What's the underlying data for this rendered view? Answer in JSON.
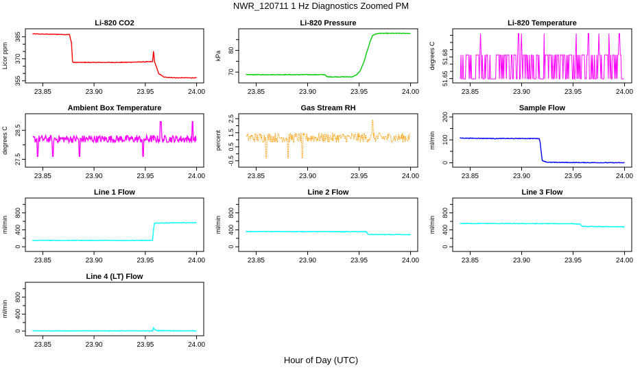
{
  "title": "NWR_120711  1 Hz Diagnostics Zoomed PM",
  "xlabel": "Hour of Day (UTC)",
  "colors": {
    "red": "#ff0000",
    "green": "#00cc00",
    "magenta": "#ff00ff",
    "orange": "#ff9900",
    "blue": "#0000ff",
    "cyan": "#00ffff",
    "axis": "#000000"
  },
  "chart_data": [
    {
      "type": "line",
      "title": "Li-820 CO2",
      "xlabel": "Hour of Day (UTC)",
      "ylabel": "Licor ppm",
      "xlim": [
        23.84,
        24.0
      ],
      "ylim": [
        355,
        389
      ],
      "xticks": [
        23.85,
        23.9,
        23.95,
        24.0
      ],
      "xtick_labels": [
        "23.85",
        "23.90",
        "23.95",
        "24.00"
      ],
      "yticks": [
        355,
        370,
        385
      ],
      "ytick_labels": [
        "355",
        "370",
        "385"
      ],
      "minor_yticks": [
        360,
        365,
        375,
        380
      ],
      "color": "red",
      "style": "line",
      "series": [
        {
          "name": "CO2",
          "x": [
            23.84,
            23.876,
            23.878,
            23.879,
            23.88,
            23.9,
            23.925,
            23.957,
            23.958,
            23.959,
            23.963,
            23.968,
            23.98,
            24.0
          ],
          "y": [
            387,
            386.5,
            381,
            368,
            367.5,
            367.5,
            367.5,
            368,
            375,
            368,
            360,
            357.5,
            357,
            357
          ]
        }
      ]
    },
    {
      "type": "line",
      "title": "Li-820 Pressure",
      "xlabel": "Hour of Day (UTC)",
      "ylabel": "kPa",
      "xlim": [
        23.84,
        24.0
      ],
      "ylim": [
        66,
        89
      ],
      "xticks": [
        23.85,
        23.9,
        23.95,
        24.0
      ],
      "xtick_labels": [
        "23.85",
        "23.90",
        "23.95",
        "24.00"
      ],
      "yticks": [
        70,
        80
      ],
      "ytick_labels": [
        "70",
        "80"
      ],
      "minor_yticks": [
        75,
        85
      ],
      "color": "green",
      "style": "line",
      "series": [
        {
          "name": "Pressure",
          "x": [
            23.84,
            23.917,
            23.919,
            23.943,
            23.947,
            23.951,
            23.955,
            23.958,
            23.961,
            23.963,
            23.966,
            23.97,
            24.0
          ],
          "y": [
            68.8,
            68.8,
            67.8,
            67.8,
            68.5,
            70.5,
            75,
            80,
            84.5,
            86.8,
            87.6,
            87.9,
            87.9
          ]
        }
      ]
    },
    {
      "type": "line",
      "title": "Li-820 Temperature",
      "xlabel": "Hour of Day (UTC)",
      "ylabel": "degrees C",
      "xlim": [
        23.84,
        24.0
      ],
      "ylim": [
        51.647,
        51.716
      ],
      "xticks": [
        23.85,
        23.9,
        23.95,
        24.0
      ],
      "xtick_labels": [
        "23.85",
        "23.90",
        "23.95",
        "24.00"
      ],
      "yticks": [
        51.65,
        51.68
      ],
      "ytick_labels": [
        "51.65",
        "51.68"
      ],
      "minor_yticks": [
        51.66,
        51.67,
        51.69,
        51.7,
        51.71
      ],
      "color": "magenta",
      "style": "quantized",
      "levels": [
        51.6496,
        51.6828,
        51.7124
      ],
      "series": [
        {
          "name": "Temperature",
          "base_level": 51.6828,
          "low_level": 51.6496,
          "spikes_x": [
            23.86,
            23.897,
            23.9,
            23.922,
            23.953,
            23.965,
            23.985,
            23.995,
            23.975
          ]
        }
      ]
    },
    {
      "type": "line",
      "title": "Ambient Box Temperature",
      "xlabel": "Hour of Day (UTC)",
      "ylabel": "degrees C",
      "xlim": [
        23.84,
        24.0
      ],
      "ylim": [
        27.3,
        29.0
      ],
      "xticks": [
        23.85,
        23.9,
        23.95,
        24.0
      ],
      "xtick_labels": [
        "23.85",
        "23.90",
        "23.95",
        "24.00"
      ],
      "yticks": [
        27.5,
        28.5
      ],
      "ytick_labels": [
        "27.5",
        "28.5"
      ],
      "minor_yticks": [
        28.0
      ],
      "color": "magenta",
      "style": "noise",
      "series": [
        {
          "name": "Ambient",
          "mean": 28.2,
          "noise": 0.13,
          "dips_x": [
            23.845,
            23.86,
            23.886,
            23.948
          ],
          "spikes_x": [
            23.965,
            23.996
          ]
        }
      ]
    },
    {
      "type": "scatter",
      "title": "Gas Stream RH",
      "xlabel": "Hour of Day (UTC)",
      "ylabel": "percent",
      "xlim": [
        23.84,
        24.0
      ],
      "ylim": [
        -0.8,
        2.7
      ],
      "xticks": [
        23.85,
        23.9,
        23.95,
        24.0
      ],
      "xtick_labels": [
        "23.85",
        "23.90",
        "23.95",
        "24.00"
      ],
      "yticks": [
        -0.5,
        0.5,
        1.5,
        2.5
      ],
      "ytick_labels": [
        "-0.5",
        "0.5",
        "1.5",
        "2.5"
      ],
      "minor_yticks": [
        0.0,
        1.0,
        2.0
      ],
      "color": "orange",
      "style": "scatter-noise",
      "series": [
        {
          "name": "RH",
          "mean": 1.15,
          "noise": 0.35,
          "dips_x": [
            23.86,
            23.881,
            23.895
          ],
          "spikes_x": [
            23.963
          ]
        }
      ]
    },
    {
      "type": "line",
      "title": "Sample Flow",
      "xlabel": "Hour of Day (UTC)",
      "ylabel": "ml/min",
      "xlim": [
        23.84,
        24.0
      ],
      "ylim": [
        -10,
        205
      ],
      "xticks": [
        23.85,
        23.9,
        23.95,
        24.0
      ],
      "xtick_labels": [
        "23.85",
        "23.90",
        "23.95",
        "24.00"
      ],
      "yticks": [
        0,
        100,
        200
      ],
      "ytick_labels": [
        "0",
        "100",
        "200"
      ],
      "minor_yticks": [
        50,
        150
      ],
      "color": "blue",
      "style": "line",
      "series": [
        {
          "name": "Sample Flow",
          "x": [
            23.84,
            23.875,
            23.917,
            23.918,
            23.92,
            23.925,
            23.95,
            24.0
          ],
          "y": [
            108,
            106,
            106,
            90,
            10,
            2,
            1,
            0
          ]
        }
      ]
    },
    {
      "type": "line",
      "title": "Line 1 Flow",
      "xlabel": "Hour of Day (UTC)",
      "ylabel": "ml/min",
      "xlim": [
        23.84,
        24.0
      ],
      "ylim": [
        -60,
        1100
      ],
      "xticks": [
        23.85,
        23.9,
        23.95,
        24.0
      ],
      "xtick_labels": [
        "23.85",
        "23.90",
        "23.95",
        "24.00"
      ],
      "yticks": [
        0,
        400,
        800
      ],
      "ytick_labels": [
        "0",
        "400",
        "800"
      ],
      "minor_yticks": [
        200,
        600,
        1000
      ],
      "color": "cyan",
      "style": "line",
      "series": [
        {
          "name": "Line 1",
          "x": [
            23.84,
            23.957,
            23.958,
            23.959,
            24.0
          ],
          "y": [
            150,
            150,
            400,
            560,
            570
          ]
        }
      ]
    },
    {
      "type": "line",
      "title": "Line 2 Flow",
      "xlabel": "Hour of Day (UTC)",
      "ylabel": "ml/min",
      "xlim": [
        23.84,
        24.0
      ],
      "ylim": [
        -60,
        1100
      ],
      "xticks": [
        23.85,
        23.9,
        23.95,
        24.0
      ],
      "xtick_labels": [
        "23.85",
        "23.90",
        "23.95",
        "24.00"
      ],
      "yticks": [
        0,
        400,
        800
      ],
      "ytick_labels": [
        "0",
        "400",
        "800"
      ],
      "minor_yticks": [
        200,
        600,
        1000
      ],
      "color": "cyan",
      "style": "line",
      "series": [
        {
          "name": "Line 2",
          "x": [
            23.84,
            23.957,
            23.958,
            23.959,
            24.0
          ],
          "y": [
            360,
            355,
            320,
            290,
            285
          ]
        }
      ]
    },
    {
      "type": "line",
      "title": "Line 3 Flow",
      "xlabel": "Hour of Day (UTC)",
      "ylabel": "ml/min",
      "xlim": [
        23.84,
        24.0
      ],
      "ylim": [
        -60,
        1100
      ],
      "xticks": [
        23.85,
        23.9,
        23.95,
        24.0
      ],
      "xtick_labels": [
        "23.85",
        "23.90",
        "23.95",
        "24.00"
      ],
      "yticks": [
        0,
        400,
        800
      ],
      "ytick_labels": [
        "0",
        "400",
        "800"
      ],
      "minor_yticks": [
        200,
        600,
        1000
      ],
      "color": "cyan",
      "style": "line",
      "series": [
        {
          "name": "Line 3",
          "x": [
            23.84,
            23.95,
            23.957,
            23.959,
            24.0
          ],
          "y": [
            550,
            545,
            530,
            480,
            470
          ]
        }
      ]
    },
    {
      "type": "line",
      "title": "Line 4 (LT) Flow",
      "xlabel": "Hour of Day (UTC)",
      "ylabel": "ml/min",
      "xlim": [
        23.84,
        24.0
      ],
      "ylim": [
        -60,
        1100
      ],
      "xticks": [
        23.85,
        23.9,
        23.95,
        24.0
      ],
      "xtick_labels": [
        "23.85",
        "23.90",
        "23.95",
        "24.00"
      ],
      "yticks": [
        0,
        400,
        800
      ],
      "ytick_labels": [
        "0",
        "400",
        "800"
      ],
      "minor_yticks": [
        200,
        600,
        1000
      ],
      "color": "cyan",
      "style": "line",
      "series": [
        {
          "name": "Line 4",
          "x": [
            23.84,
            23.957,
            23.958,
            23.959,
            23.961,
            24.0
          ],
          "y": [
            5,
            5,
            70,
            40,
            10,
            5
          ]
        }
      ]
    }
  ]
}
